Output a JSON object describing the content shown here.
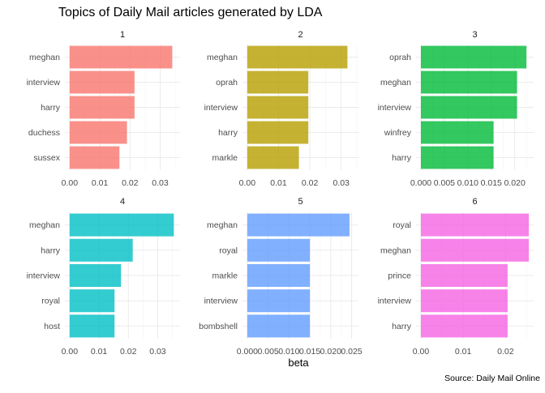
{
  "chart_data": {
    "type": "bar",
    "orientation": "horizontal",
    "title": "Topics of Daily Mail articles generated by LDA",
    "xlabel": "beta",
    "caption": "Source: Daily Mail Online",
    "grid": true,
    "legend": "none",
    "facets": [
      {
        "strip": "1",
        "color": "#F8766D",
        "xlim": [
          0,
          0.035
        ],
        "ticks": [
          0,
          0.01,
          0.02,
          0.03
        ],
        "tick_labels": [
          "0.00",
          "0.01",
          "0.02",
          "0.03"
        ],
        "categories": [
          "meghan",
          "interview",
          "harry",
          "duchess",
          "sussex"
        ],
        "values": [
          0.034,
          0.0215,
          0.0215,
          0.019,
          0.0165
        ]
      },
      {
        "strip": "2",
        "color": "#B79F00",
        "xlim": [
          0,
          0.034
        ],
        "ticks": [
          0,
          0.01,
          0.02,
          0.03
        ],
        "tick_labels": [
          "0.00",
          "0.01",
          "0.02",
          "0.03"
        ],
        "categories": [
          "meghan",
          "oprah",
          "interview",
          "harry",
          "markle"
        ],
        "values": [
          0.032,
          0.0195,
          0.0195,
          0.0195,
          0.0165
        ]
      },
      {
        "strip": "3",
        "color": "#00BA38",
        "xlim": [
          0,
          0.023
        ],
        "ticks": [
          0,
          0.005,
          0.01,
          0.015,
          0.02
        ],
        "tick_labels": [
          "0.000",
          "0.005",
          "0.010",
          "0.015",
          "0.020"
        ],
        "categories": [
          "oprah",
          "meghan",
          "interview",
          "winfrey",
          "harry"
        ],
        "values": [
          0.0225,
          0.0205,
          0.0205,
          0.0155,
          0.0155
        ]
      },
      {
        "strip": "4",
        "color": "#00BFC4",
        "xlim": [
          0,
          0.036
        ],
        "ticks": [
          0,
          0.01,
          0.02,
          0.03
        ],
        "tick_labels": [
          "0.00",
          "0.01",
          "0.02",
          "0.03"
        ],
        "categories": [
          "meghan",
          "harry",
          "interview",
          "royal",
          "host"
        ],
        "values": [
          0.0355,
          0.0215,
          0.0175,
          0.0153,
          0.0153
        ]
      },
      {
        "strip": "5",
        "color": "#619CFF",
        "xlim": [
          0,
          0.0255
        ],
        "ticks": [
          0,
          0.005,
          0.01,
          0.015,
          0.02,
          0.025
        ],
        "tick_labels": [
          "0.000",
          "0.005",
          "0.010",
          "0.015",
          "0.020",
          "0.025"
        ],
        "categories": [
          "meghan",
          "royal",
          "markle",
          "interview",
          "bombshell"
        ],
        "values": [
          0.0245,
          0.015,
          0.015,
          0.015,
          0.015
        ]
      },
      {
        "strip": "6",
        "color": "#F564E3",
        "xlim": [
          0,
          0.0255
        ],
        "ticks": [
          0,
          0.01,
          0.02
        ],
        "tick_labels": [
          "0.00",
          "0.01",
          "0.02"
        ],
        "categories": [
          "royal",
          "meghan",
          "prince",
          "interview",
          "harry"
        ],
        "values": [
          0.0255,
          0.0255,
          0.0205,
          0.0205,
          0.0205
        ]
      }
    ]
  }
}
